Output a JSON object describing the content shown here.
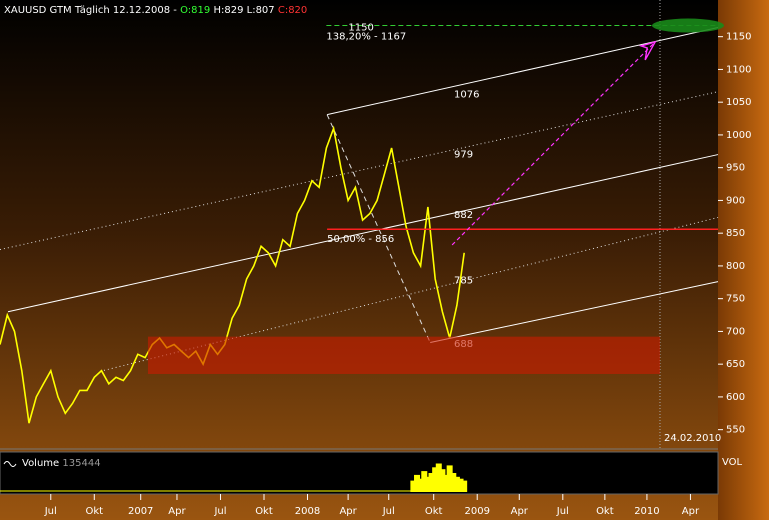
{
  "chart_data": {
    "type": "line",
    "header": {
      "symbol": "XAUUSD GTM Täglich",
      "date": "12.12.2008 -",
      "open": "O:819",
      "high": "H:829",
      "low": "L:807",
      "close": "C:820"
    },
    "series": [
      {
        "name": "XAUUSD",
        "color": "#ffff00",
        "x": [
          3,
          3.5,
          4,
          4.5,
          5,
          5.5,
          6,
          6.5,
          7,
          7.5,
          8,
          8.5,
          9,
          9.5,
          10,
          10.5,
          11,
          11.5,
          12,
          12.5,
          13,
          13.5,
          14,
          14.5,
          15,
          15.5,
          16,
          16.5,
          17,
          17.5,
          18,
          18.5,
          19,
          19.5,
          20,
          20.5,
          21,
          21.5,
          22,
          22.5,
          23,
          23.5,
          24,
          24.5,
          25,
          25.5,
          26,
          26.5,
          27,
          27.5,
          28,
          28.5,
          29,
          29.5,
          30,
          30.5,
          31,
          31.5,
          32,
          32.5,
          33,
          33.5,
          34,
          34.5,
          35
        ],
        "values": [
          680,
          725,
          700,
          640,
          560,
          600,
          620,
          640,
          600,
          575,
          590,
          610,
          610,
          630,
          640,
          620,
          630,
          625,
          640,
          665,
          660,
          680,
          690,
          675,
          680,
          670,
          660,
          670,
          650,
          680,
          665,
          680,
          720,
          740,
          780,
          800,
          830,
          820,
          800,
          840,
          830,
          880,
          900,
          930,
          920,
          980,
          1010,
          950,
          900,
          920,
          870,
          880,
          900,
          940,
          980,
          920,
          860,
          820,
          800,
          890,
          780,
          730,
          690,
          740,
          820
        ]
      }
    ],
    "volume": {
      "label": "Volume",
      "value_label": "135444",
      "axis_label": "VOL",
      "color": "#ffff00",
      "x": [
        31.5,
        31.75,
        32,
        32.25,
        32.5,
        32.75,
        33,
        33.25,
        33.5,
        33.75,
        34,
        34.25,
        34.5,
        34.75,
        35
      ],
      "values": [
        60000,
        90000,
        70000,
        110000,
        80000,
        100000,
        130000,
        150000,
        120000,
        90000,
        140000,
        100000,
        80000,
        70000,
        60000
      ],
      "ylim": [
        0,
        200000
      ]
    },
    "xlim": [
      3,
      52.5
    ],
    "xticks": [
      {
        "value": 6.5,
        "label": "Jul"
      },
      {
        "value": 9.5,
        "label": "Okt"
      },
      {
        "value": 12.7,
        "label": "2007"
      },
      {
        "value": 15.2,
        "label": "Apr"
      },
      {
        "value": 18.2,
        "label": "Jul"
      },
      {
        "value": 21.2,
        "label": "Okt"
      },
      {
        "value": 24.2,
        "label": "2008"
      },
      {
        "value": 27,
        "label": "Apr"
      },
      {
        "value": 29.8,
        "label": "Jul"
      },
      {
        "value": 32.9,
        "label": "Okt"
      },
      {
        "value": 35.9,
        "label": "2009"
      },
      {
        "value": 38.8,
        "label": "Apr"
      },
      {
        "value": 41.8,
        "label": "Jul"
      },
      {
        "value": 44.7,
        "label": "Okt"
      },
      {
        "value": 47.6,
        "label": "2010"
      },
      {
        "value": 50.6,
        "label": "Apr"
      }
    ],
    "ylim": [
      522,
      1206
    ],
    "yticks": [
      550,
      600,
      650,
      700,
      750,
      800,
      850,
      900,
      950,
      1000,
      1050,
      1100,
      1150
    ],
    "channel_lines": [
      {
        "x": [
          25.55,
          52.5
        ],
        "y": [
          1031,
          1164
        ],
        "style": "solid"
      },
      {
        "x": [
          3.55,
          52.5
        ],
        "y": [
          730,
          970
        ],
        "style": "solid"
      },
      {
        "x": [
          32.66,
          52.5
        ],
        "y": [
          683,
          776
        ],
        "style": "solid"
      },
      {
        "x": [
          3,
          52.5
        ],
        "y": [
          825,
          1066
        ],
        "style": "dotted"
      },
      {
        "x": [
          9.9,
          52.5
        ],
        "y": [
          639,
          874
        ],
        "style": "dotted"
      },
      {
        "x": [
          25.55,
          32.66
        ],
        "y": [
          1031,
          683
        ],
        "style": "dashed"
      }
    ],
    "channel_labels": [
      {
        "text": "1076",
        "x": 34.3,
        "y": 1062
      },
      {
        "text": "979",
        "x": 34.3,
        "y": 970
      },
      {
        "text": "882",
        "x": 34.3,
        "y": 878
      },
      {
        "text": "785",
        "x": 34.3,
        "y": 778
      },
      {
        "text": "688",
        "x": 34.3,
        "y": 681
      }
    ],
    "fib_line": {
      "value": 856,
      "x": [
        25.55,
        52.5
      ],
      "label": "50,00% - 856",
      "color": "#ff2020"
    },
    "target_line": {
      "value": 1167,
      "x": [
        25.5,
        52.5
      ],
      "label": "138,20% - 1167",
      "mark_label": "1150",
      "color": "#33cc33"
    },
    "zone": {
      "y": [
        635,
        692
      ],
      "x": [
        13.2,
        48.5
      ],
      "color": "#cc1a00"
    },
    "arrow": {
      "x": [
        34.17,
        48.17
      ],
      "y": [
        832,
        1142
      ],
      "color": "#ff33ff"
    },
    "vline": {
      "x": 48.5,
      "label": "24.02.2010"
    }
  }
}
